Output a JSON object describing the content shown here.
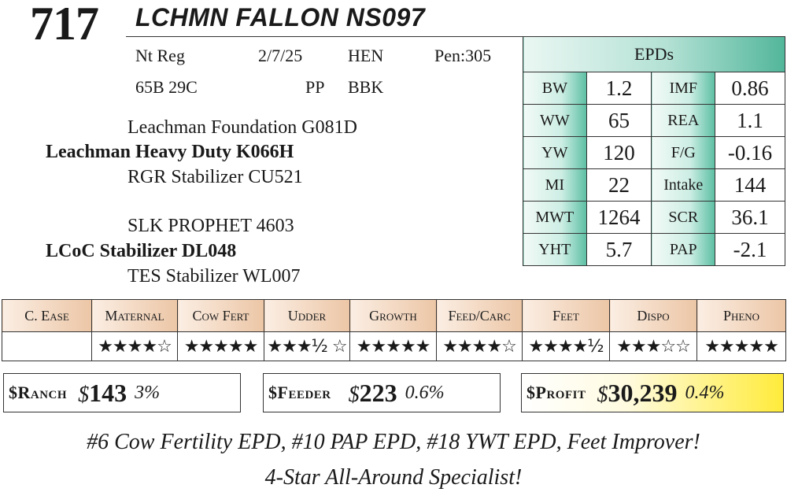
{
  "header": {
    "lot_number": "717",
    "animal_name": "LCHMN FALLON NS097"
  },
  "info": {
    "registration": "Nt Reg",
    "birth_date": "2/7/25",
    "breeder": "HEN",
    "pen": "Pen:305",
    "tags": "65B 29C",
    "polled": "PP",
    "color": "BBK"
  },
  "pedigree": {
    "sire_sire": "Leachman Foundation G081D",
    "sire": "Leachman Heavy Duty K066H",
    "sire_dam": "RGR Stabilizer CU521",
    "dam_sire": "SLK PROPHET 4603",
    "dam": "LCoC Stabilizer DL048",
    "dam_dam": "TES Stabilizer WL007"
  },
  "epds": {
    "title": "EPDs",
    "rows": [
      {
        "l1": "BW",
        "v1": "1.2",
        "l2": "IMF",
        "v2": "0.86"
      },
      {
        "l1": "WW",
        "v1": "65",
        "l2": "REA",
        "v2": "1.1"
      },
      {
        "l1": "YW",
        "v1": "120",
        "l2": "F/G",
        "v2": "-0.16"
      },
      {
        "l1": "MI",
        "v1": "22",
        "l2": "Intake",
        "v2": "144"
      },
      {
        "l1": "MWT",
        "v1": "1264",
        "l2": "SCR",
        "v2": "36.1"
      },
      {
        "l1": "YHT",
        "v1": "5.7",
        "l2": "PAP",
        "v2": "-2.1"
      }
    ]
  },
  "ratings": {
    "headers": [
      "C. Ease",
      "Maternal",
      "Cow Fert",
      "Udder",
      "Growth",
      "Feed/Carc",
      "Feet",
      "Dispo",
      "Pheno"
    ],
    "stars": [
      "",
      "★★★★☆",
      "★★★★★",
      "★★★½ ☆",
      "★★★★★",
      "★★★★☆",
      "★★★★½",
      "★★★☆☆",
      "★★★★★"
    ],
    "values": [
      null,
      4,
      5,
      3.5,
      5,
      4,
      4.5,
      3,
      5
    ]
  },
  "indexes": {
    "ranch": {
      "label": "$Ranch",
      "currency": "$",
      "value": "143",
      "pct": "3%"
    },
    "feeder": {
      "label": "$Feeder",
      "currency": "$",
      "value": "223",
      "pct": "0.6%"
    },
    "profit": {
      "label": "$Profit",
      "currency": "$",
      "value": "30,239",
      "pct": "0.4%"
    }
  },
  "colors": {
    "epd_accent": "#52b69b",
    "ratings_header": "#ecc6a6",
    "profit_highlight": "#ffeb3b"
  },
  "footer": {
    "line1": "#6 Cow Fertility EPD, #10 PAP EPD, #18 YWT EPD, Feet Improver!",
    "line2": "4-Star All-Around Specialist!"
  }
}
